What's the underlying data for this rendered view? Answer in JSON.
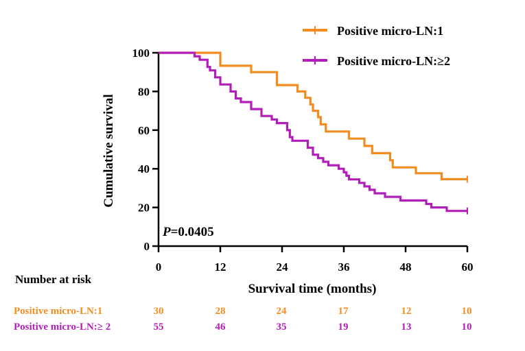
{
  "colors": {
    "series1": "#F28C1E",
    "series2": "#B21EBA",
    "axis": "#000000"
  },
  "chart_data": {
    "type": "line",
    "subtype": "kaplan-meier",
    "title": "",
    "xlabel": "Survival time (months)",
    "ylabel": "Cumulative survival",
    "xlim": [
      0,
      60
    ],
    "ylim": [
      0,
      100
    ],
    "x_ticks": [
      0,
      12,
      24,
      36,
      48,
      60
    ],
    "y_ticks": [
      0,
      20,
      40,
      60,
      80,
      100
    ],
    "legend_position": "top-right",
    "annotation": {
      "p_label": "P",
      "p_value": "=0.0405"
    },
    "series": [
      {
        "name": "Positive micro-LN:1",
        "color_key": "series1",
        "steps": [
          [
            0,
            100
          ],
          [
            12,
            100
          ],
          [
            12,
            93.3
          ],
          [
            18,
            93.3
          ],
          [
            18,
            90
          ],
          [
            23,
            90
          ],
          [
            23,
            83.3
          ],
          [
            27,
            83.3
          ],
          [
            27,
            80
          ],
          [
            28.5,
            80
          ],
          [
            28.5,
            76.7
          ],
          [
            29.5,
            76.7
          ],
          [
            29.5,
            73.3
          ],
          [
            30,
            73.3
          ],
          [
            30,
            70
          ],
          [
            31,
            70
          ],
          [
            31,
            66.7
          ],
          [
            31.5,
            66.7
          ],
          [
            31.5,
            63
          ],
          [
            32.5,
            63
          ],
          [
            32.5,
            59.3
          ],
          [
            37,
            59.3
          ],
          [
            37,
            55.6
          ],
          [
            40,
            55.6
          ],
          [
            40,
            51.8
          ],
          [
            41.5,
            51.8
          ],
          [
            41.5,
            48.1
          ],
          [
            45,
            48.1
          ],
          [
            45,
            44.4
          ],
          [
            45.5,
            44.4
          ],
          [
            45.5,
            40.7
          ],
          [
            50,
            40.7
          ],
          [
            50,
            37.7
          ],
          [
            55,
            37.7
          ],
          [
            55,
            34.6
          ],
          [
            60,
            34.6
          ]
        ],
        "censor_points": [
          [
            18,
            91
          ],
          [
            60,
            34.6
          ]
        ]
      },
      {
        "name": "Positive micro-LN:≥2",
        "color_key": "series2",
        "steps": [
          [
            0,
            100
          ],
          [
            7,
            100
          ],
          [
            7,
            98.2
          ],
          [
            8,
            98.2
          ],
          [
            8,
            96.4
          ],
          [
            9.5,
            96.4
          ],
          [
            9.5,
            92.7
          ],
          [
            10,
            92.7
          ],
          [
            10,
            90.9
          ],
          [
            11,
            90.9
          ],
          [
            11,
            87.3
          ],
          [
            12,
            87.3
          ],
          [
            12,
            83.6
          ],
          [
            14,
            83.6
          ],
          [
            14,
            80
          ],
          [
            15,
            80
          ],
          [
            15,
            76.4
          ],
          [
            16,
            76.4
          ],
          [
            16,
            74.5
          ],
          [
            18,
            74.5
          ],
          [
            18,
            70.9
          ],
          [
            20,
            70.9
          ],
          [
            20,
            67.3
          ],
          [
            22,
            67.3
          ],
          [
            22,
            65.5
          ],
          [
            23,
            65.5
          ],
          [
            23,
            63.6
          ],
          [
            25,
            63.6
          ],
          [
            25,
            60
          ],
          [
            25.5,
            60
          ],
          [
            25.5,
            56.4
          ],
          [
            26,
            56.4
          ],
          [
            26,
            54.5
          ],
          [
            29,
            54.5
          ],
          [
            29,
            50.9
          ],
          [
            30,
            50.9
          ],
          [
            30,
            47.3
          ],
          [
            31,
            47.3
          ],
          [
            31,
            45.5
          ],
          [
            32,
            45.5
          ],
          [
            32,
            43.6
          ],
          [
            33,
            43.6
          ],
          [
            33,
            41.8
          ],
          [
            35,
            41.8
          ],
          [
            35,
            40
          ],
          [
            36,
            40
          ],
          [
            36,
            38.2
          ],
          [
            36.5,
            38.2
          ],
          [
            36.5,
            36.4
          ],
          [
            37,
            36.4
          ],
          [
            37,
            34.5
          ],
          [
            39,
            34.5
          ],
          [
            39,
            32.7
          ],
          [
            40,
            32.7
          ],
          [
            40,
            30.9
          ],
          [
            41,
            30.9
          ],
          [
            41,
            29.1
          ],
          [
            42,
            29.1
          ],
          [
            42,
            27.3
          ],
          [
            44,
            27.3
          ],
          [
            44,
            25.5
          ],
          [
            47,
            25.5
          ],
          [
            47,
            23.6
          ],
          [
            52,
            23.6
          ],
          [
            52,
            21.8
          ],
          [
            53,
            21.8
          ],
          [
            53,
            20
          ],
          [
            56,
            20
          ],
          [
            56,
            18.2
          ],
          [
            60,
            18.2
          ]
        ],
        "censor_points": [
          [
            60,
            18.2
          ]
        ]
      }
    ],
    "risk_table": {
      "title": "Number at risk",
      "times": [
        0,
        12,
        24,
        36,
        48,
        60
      ],
      "rows": [
        {
          "label": "Positive micro-LN:1",
          "color_key": "series1",
          "values": [
            30,
            28,
            24,
            17,
            12,
            10
          ]
        },
        {
          "label": "Positive micro-LN:≥ 2",
          "color_key": "series2",
          "values": [
            55,
            46,
            35,
            19,
            13,
            10
          ]
        }
      ]
    }
  }
}
